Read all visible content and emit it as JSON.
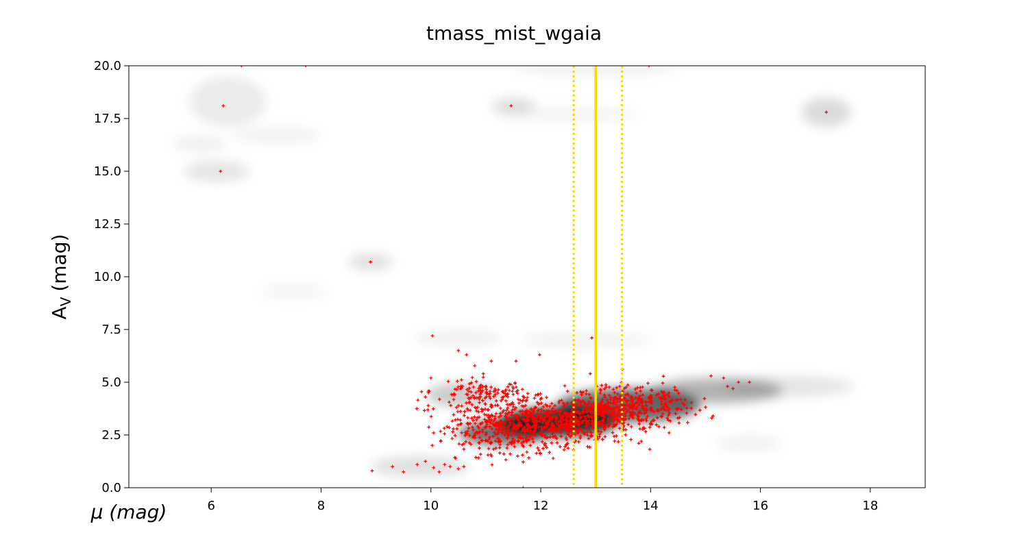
{
  "chart_data": {
    "type": "scatter",
    "title": "tmass_mist_wgaia",
    "xlabel": "μ (mag)",
    "ylabel_main": "A",
    "ylabel_sub": "V",
    "ylabel_unit": "(mag)",
    "xlim": [
      4.5,
      19
    ],
    "ylim": [
      0,
      20
    ],
    "x_ticks": [
      6,
      8,
      10,
      12,
      14,
      16,
      18
    ],
    "x_tick_labels": [
      "6",
      "8",
      "10",
      "12",
      "14",
      "16",
      "18"
    ],
    "y_ticks": [
      0,
      2.5,
      5,
      7.5,
      10,
      12.5,
      15,
      17.5,
      20
    ],
    "y_tick_labels": [
      "0.0",
      "2.5",
      "5.0",
      "7.5",
      "10.0",
      "12.5",
      "15.0",
      "17.5",
      "20.0"
    ],
    "grid": false,
    "colors": {
      "samples": "#ff0000",
      "reference": "#ffd700",
      "density": "#000000"
    },
    "reference_lines": [
      {
        "x": 13.0,
        "style": "solid"
      },
      {
        "x": 12.6,
        "style": "dotted"
      },
      {
        "x": 13.48,
        "style": "dotted"
      }
    ],
    "density_blobs": [
      {
        "x": 12.3,
        "y": 3.1,
        "sx": 1.1,
        "sy": 0.7,
        "w": 0.8
      },
      {
        "x": 13.6,
        "y": 3.9,
        "sx": 1.3,
        "sy": 0.8,
        "w": 0.6
      },
      {
        "x": 11.3,
        "y": 2.6,
        "sx": 0.8,
        "sy": 0.6,
        "w": 0.55
      },
      {
        "x": 15.2,
        "y": 4.6,
        "sx": 1.2,
        "sy": 0.6,
        "w": 0.3
      },
      {
        "x": 10.6,
        "y": 4.4,
        "sx": 0.7,
        "sy": 0.6,
        "w": 0.2
      },
      {
        "x": 9.8,
        "y": 1.0,
        "sx": 0.9,
        "sy": 0.5,
        "w": 0.12
      },
      {
        "x": 16.5,
        "y": 4.8,
        "sx": 1.2,
        "sy": 0.5,
        "w": 0.1
      },
      {
        "x": 8.9,
        "y": 10.7,
        "sx": 0.4,
        "sy": 0.4,
        "w": 0.12
      },
      {
        "x": 11.5,
        "y": 18.1,
        "sx": 0.4,
        "sy": 0.4,
        "w": 0.12
      },
      {
        "x": 17.2,
        "y": 17.8,
        "sx": 0.45,
        "sy": 0.7,
        "w": 0.14
      },
      {
        "x": 6.1,
        "y": 15.0,
        "sx": 0.6,
        "sy": 0.5,
        "w": 0.1
      },
      {
        "x": 6.3,
        "y": 18.3,
        "sx": 0.7,
        "sy": 1.2,
        "w": 0.08
      },
      {
        "x": 5.8,
        "y": 16.3,
        "sx": 0.5,
        "sy": 0.4,
        "w": 0.06
      },
      {
        "x": 7.2,
        "y": 16.7,
        "sx": 0.8,
        "sy": 0.4,
        "w": 0.05
      },
      {
        "x": 7.5,
        "y": 9.3,
        "sx": 0.6,
        "sy": 0.4,
        "w": 0.04
      },
      {
        "x": 10.5,
        "y": 7.1,
        "sx": 0.8,
        "sy": 0.4,
        "w": 0.06
      },
      {
        "x": 12.8,
        "y": 7.0,
        "sx": 1.2,
        "sy": 0.4,
        "w": 0.05
      },
      {
        "x": 15.8,
        "y": 2.1,
        "sx": 0.6,
        "sy": 0.4,
        "w": 0.05
      },
      {
        "x": 13.0,
        "y": 19.9,
        "sx": 1.5,
        "sy": 0.4,
        "w": 0.05
      },
      {
        "x": 12.5,
        "y": 17.7,
        "sx": 1.3,
        "sy": 0.4,
        "w": 0.04
      }
    ],
    "outlier_points": [
      {
        "x": 6.55,
        "y": 20.0
      },
      {
        "x": 7.72,
        "y": 20.0
      },
      {
        "x": 13.97,
        "y": 20.0
      },
      {
        "x": 6.22,
        "y": 18.1
      },
      {
        "x": 11.46,
        "y": 18.1
      },
      {
        "x": 17.2,
        "y": 17.8
      },
      {
        "x": 6.17,
        "y": 15.0
      },
      {
        "x": 8.9,
        "y": 10.7
      },
      {
        "x": 10.03,
        "y": 7.2
      },
      {
        "x": 12.93,
        "y": 7.1
      },
      {
        "x": 10.5,
        "y": 6.5
      },
      {
        "x": 10.65,
        "y": 6.3
      },
      {
        "x": 11.55,
        "y": 6.0
      },
      {
        "x": 11.1,
        "y": 6.0
      },
      {
        "x": 11.98,
        "y": 6.3
      },
      {
        "x": 8.93,
        "y": 0.8
      },
      {
        "x": 9.3,
        "y": 1.0
      },
      {
        "x": 9.5,
        "y": 0.75
      },
      {
        "x": 9.75,
        "y": 1.1
      },
      {
        "x": 9.9,
        "y": 1.25
      },
      {
        "x": 10.05,
        "y": 0.95
      },
      {
        "x": 10.15,
        "y": 0.75
      },
      {
        "x": 10.25,
        "y": 1.1
      },
      {
        "x": 10.35,
        "y": 1.0
      },
      {
        "x": 10.5,
        "y": 0.9
      },
      {
        "x": 10.6,
        "y": 1.0
      },
      {
        "x": 11.68,
        "y": 0.0
      },
      {
        "x": 15.33,
        "y": 5.2
      },
      {
        "x": 15.4,
        "y": 4.8
      },
      {
        "x": 15.5,
        "y": 4.7
      },
      {
        "x": 15.6,
        "y": 5.0
      },
      {
        "x": 15.8,
        "y": 5.0
      },
      {
        "x": 15.1,
        "y": 5.3
      },
      {
        "x": 9.83,
        "y": 4.55
      },
      {
        "x": 9.9,
        "y": 4.3
      },
      {
        "x": 10.0,
        "y": 5.2
      },
      {
        "x": 10.05,
        "y": 2.6
      }
    ],
    "cloud": {
      "count": 1450,
      "seed": 12345,
      "clusters": [
        {
          "x": 12.3,
          "y": 3.1,
          "sx": 0.75,
          "sy": 0.5,
          "w": 0.45
        },
        {
          "x": 13.6,
          "y": 3.9,
          "sx": 0.55,
          "sy": 0.45,
          "w": 0.3
        },
        {
          "x": 11.3,
          "y": 2.6,
          "sx": 0.5,
          "sy": 0.55,
          "w": 0.15
        },
        {
          "x": 11.0,
          "y": 4.3,
          "sx": 0.5,
          "sy": 0.5,
          "w": 0.1
        }
      ]
    }
  }
}
